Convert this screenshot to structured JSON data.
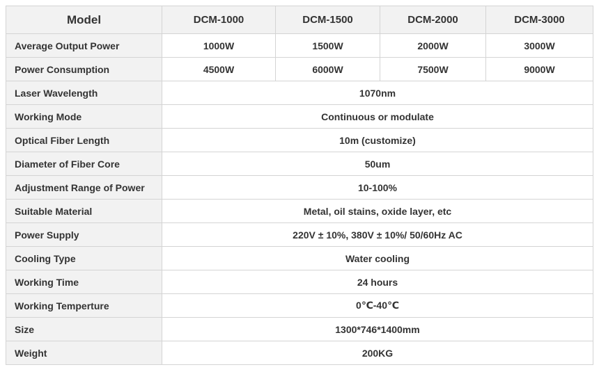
{
  "table": {
    "header": [
      "Model",
      "DCM-1000",
      "DCM-1500",
      "DCM-2000",
      "DCM-3000"
    ],
    "rows": [
      [
        "Average Output Power",
        "1000W",
        "1500W",
        "2000W",
        "3000W"
      ],
      [
        "Power Consumption",
        "4500W",
        "6000W",
        "7500W",
        "9000W"
      ],
      [
        "Laser Wavelength",
        "1070nm"
      ],
      [
        "Working Mode",
        "Continuous or modulate"
      ],
      [
        "Optical Fiber Length",
        "10m (customize)"
      ],
      [
        "Diameter of Fiber Core",
        "50um"
      ],
      [
        "Adjustment Range of Power",
        "10-100%"
      ],
      [
        "Suitable Material",
        "Metal, oil stains, oxide layer, etc"
      ],
      [
        "Power Supply",
        "220V ± 10%,  380V ± 10%/ 50/60Hz AC"
      ],
      [
        "Cooling Type",
        "Water cooling"
      ],
      [
        "Working Time",
        "24 hours"
      ],
      [
        "Working Temperture",
        "0℃-40℃"
      ],
      [
        "Size",
        "1300*746*1400mm"
      ],
      [
        "Weight",
        "200KG"
      ]
    ]
  }
}
